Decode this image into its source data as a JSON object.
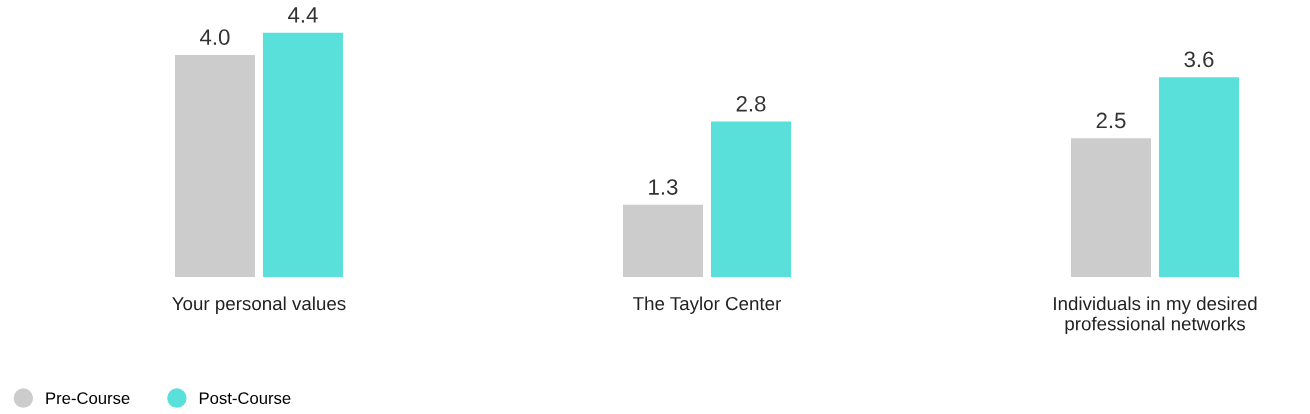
{
  "chart_data": {
    "type": "bar",
    "categories": [
      "Your personal values",
      "The Taylor Center",
      "Individuals in my desired\nprofessional networks"
    ],
    "series": [
      {
        "name": "Pre-Course",
        "color": "#cccccc",
        "values": [
          4.0,
          1.3,
          2.5
        ],
        "value_labels": [
          "4.0",
          "1.3",
          "2.5"
        ]
      },
      {
        "name": "Post-Course",
        "color": "#59e0db",
        "values": [
          4.4,
          2.8,
          3.6
        ],
        "value_labels": [
          "4.4",
          "2.8",
          "3.6"
        ]
      }
    ],
    "tick_labels": "x",
    "legend": "bottom left"
  }
}
